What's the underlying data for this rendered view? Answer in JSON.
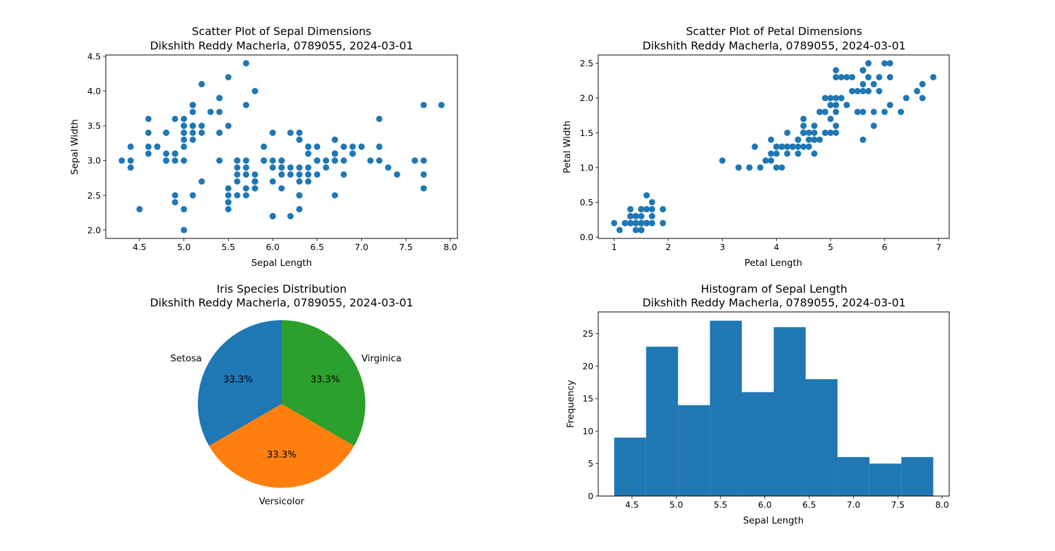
{
  "colors": {
    "series": "#1f77b4",
    "pie": [
      "#1f77b4",
      "#ff7f0e",
      "#2ca02c"
    ],
    "pie_edge": "#ffffff",
    "axes": "#000000"
  },
  "chart_data": [
    {
      "id": "sepal-scatter",
      "type": "scatter",
      "title_lines": [
        "Scatter Plot of Sepal Dimensions",
        "Dikshith Reddy Macherla, 0789055, 2024-03-01"
      ],
      "xlabel": "Sepal Length",
      "ylabel": "Sepal Width",
      "xlim": [
        4.12,
        8.08
      ],
      "ylim": [
        1.88,
        4.52
      ],
      "xticks": [
        4.5,
        5.0,
        5.5,
        6.0,
        6.5,
        7.0,
        7.5,
        8.0
      ],
      "xtick_labels": [
        "4.5",
        "5.0",
        "5.5",
        "6.0",
        "6.5",
        "7.0",
        "7.5",
        "8.0"
      ],
      "yticks": [
        2.0,
        2.5,
        3.0,
        3.5,
        4.0,
        4.5
      ],
      "ytick_labels": [
        "2.0",
        "2.5",
        "3.0",
        "3.5",
        "4.0",
        "4.5"
      ],
      "grid": false,
      "points": [
        [
          5.1,
          3.5
        ],
        [
          4.9,
          3.0
        ],
        [
          4.7,
          3.2
        ],
        [
          4.6,
          3.1
        ],
        [
          5.0,
          3.6
        ],
        [
          5.4,
          3.9
        ],
        [
          4.6,
          3.4
        ],
        [
          5.0,
          3.4
        ],
        [
          4.4,
          2.9
        ],
        [
          4.9,
          3.1
        ],
        [
          5.4,
          3.7
        ],
        [
          4.8,
          3.4
        ],
        [
          4.8,
          3.0
        ],
        [
          4.3,
          3.0
        ],
        [
          5.8,
          4.0
        ],
        [
          5.7,
          4.4
        ],
        [
          5.4,
          3.9
        ],
        [
          5.1,
          3.5
        ],
        [
          5.7,
          3.8
        ],
        [
          5.1,
          3.8
        ],
        [
          5.4,
          3.4
        ],
        [
          5.1,
          3.7
        ],
        [
          4.6,
          3.6
        ],
        [
          5.1,
          3.3
        ],
        [
          4.8,
          3.4
        ],
        [
          5.0,
          3.0
        ],
        [
          5.0,
          3.4
        ],
        [
          5.2,
          3.5
        ],
        [
          5.2,
          3.4
        ],
        [
          4.7,
          3.2
        ],
        [
          4.8,
          3.1
        ],
        [
          5.4,
          3.4
        ],
        [
          5.2,
          4.1
        ],
        [
          5.5,
          4.2
        ],
        [
          4.9,
          3.1
        ],
        [
          5.0,
          3.2
        ],
        [
          5.5,
          3.5
        ],
        [
          4.9,
          3.6
        ],
        [
          4.4,
          3.0
        ],
        [
          5.1,
          3.4
        ],
        [
          5.0,
          3.5
        ],
        [
          4.5,
          2.3
        ],
        [
          4.4,
          3.2
        ],
        [
          5.0,
          3.5
        ],
        [
          5.1,
          3.8
        ],
        [
          4.8,
          3.0
        ],
        [
          5.1,
          3.8
        ],
        [
          4.6,
          3.2
        ],
        [
          5.3,
          3.7
        ],
        [
          5.0,
          3.3
        ],
        [
          7.0,
          3.2
        ],
        [
          6.4,
          3.2
        ],
        [
          6.9,
          3.1
        ],
        [
          5.5,
          2.3
        ],
        [
          6.5,
          2.8
        ],
        [
          5.7,
          2.8
        ],
        [
          6.3,
          3.3
        ],
        [
          4.9,
          2.4
        ],
        [
          6.6,
          2.9
        ],
        [
          5.2,
          2.7
        ],
        [
          5.0,
          2.0
        ],
        [
          5.9,
          3.0
        ],
        [
          6.0,
          2.2
        ],
        [
          6.1,
          2.9
        ],
        [
          5.6,
          2.9
        ],
        [
          6.7,
          3.1
        ],
        [
          5.6,
          3.0
        ],
        [
          5.8,
          2.7
        ],
        [
          6.2,
          2.2
        ],
        [
          5.6,
          2.5
        ],
        [
          5.9,
          3.2
        ],
        [
          6.1,
          2.8
        ],
        [
          6.3,
          2.5
        ],
        [
          6.1,
          2.8
        ],
        [
          6.4,
          2.9
        ],
        [
          6.6,
          3.0
        ],
        [
          6.8,
          2.8
        ],
        [
          6.7,
          3.0
        ],
        [
          6.0,
          2.9
        ],
        [
          5.7,
          2.6
        ],
        [
          5.5,
          2.4
        ],
        [
          5.5,
          2.4
        ],
        [
          5.8,
          2.7
        ],
        [
          6.0,
          2.7
        ],
        [
          5.4,
          3.0
        ],
        [
          6.0,
          3.4
        ],
        [
          6.7,
          3.1
        ],
        [
          6.3,
          2.3
        ],
        [
          5.6,
          3.0
        ],
        [
          5.5,
          2.5
        ],
        [
          5.5,
          2.6
        ],
        [
          6.1,
          3.0
        ],
        [
          5.8,
          2.6
        ],
        [
          5.0,
          2.3
        ],
        [
          5.6,
          2.7
        ],
        [
          5.7,
          3.0
        ],
        [
          5.7,
          2.9
        ],
        [
          6.2,
          2.9
        ],
        [
          5.1,
          2.5
        ],
        [
          5.7,
          2.8
        ],
        [
          6.3,
          3.3
        ],
        [
          5.8,
          2.7
        ],
        [
          7.1,
          3.0
        ],
        [
          6.3,
          2.9
        ],
        [
          6.5,
          3.0
        ],
        [
          7.6,
          3.0
        ],
        [
          4.9,
          2.5
        ],
        [
          7.3,
          2.9
        ],
        [
          6.7,
          2.5
        ],
        [
          7.2,
          3.6
        ],
        [
          6.5,
          3.2
        ],
        [
          6.4,
          2.7
        ],
        [
          6.8,
          3.0
        ],
        [
          5.7,
          2.5
        ],
        [
          5.8,
          2.8
        ],
        [
          6.4,
          3.2
        ],
        [
          6.5,
          3.0
        ],
        [
          7.7,
          3.8
        ],
        [
          7.7,
          2.6
        ],
        [
          6.0,
          2.2
        ],
        [
          6.9,
          3.2
        ],
        [
          5.6,
          2.8
        ],
        [
          7.7,
          2.8
        ],
        [
          6.3,
          2.7
        ],
        [
          6.7,
          3.3
        ],
        [
          7.2,
          3.2
        ],
        [
          6.2,
          2.8
        ],
        [
          6.1,
          3.0
        ],
        [
          6.4,
          2.8
        ],
        [
          7.2,
          3.0
        ],
        [
          7.4,
          2.8
        ],
        [
          7.9,
          3.8
        ],
        [
          6.4,
          2.8
        ],
        [
          6.3,
          2.8
        ],
        [
          6.1,
          2.6
        ],
        [
          7.7,
          3.0
        ],
        [
          6.3,
          3.4
        ],
        [
          6.4,
          3.1
        ],
        [
          6.0,
          3.0
        ],
        [
          6.9,
          3.1
        ],
        [
          6.7,
          3.1
        ],
        [
          6.9,
          3.1
        ],
        [
          5.8,
          2.7
        ],
        [
          6.8,
          3.2
        ],
        [
          6.7,
          3.3
        ],
        [
          6.7,
          3.0
        ],
        [
          6.3,
          2.5
        ],
        [
          6.5,
          3.0
        ],
        [
          6.2,
          3.4
        ],
        [
          5.9,
          3.0
        ]
      ]
    },
    {
      "id": "petal-scatter",
      "type": "scatter",
      "title_lines": [
        "Scatter Plot of Petal Dimensions",
        "Dikshith Reddy Macherla, 0789055, 2024-03-01"
      ],
      "xlabel": "Petal Length",
      "ylabel": "Petal Width",
      "xlim": [
        0.705,
        7.195
      ],
      "ylim": [
        -0.02,
        2.62
      ],
      "xticks": [
        1,
        2,
        3,
        4,
        5,
        6,
        7
      ],
      "xtick_labels": [
        "1",
        "2",
        "3",
        "4",
        "5",
        "6",
        "7"
      ],
      "yticks": [
        0.0,
        0.5,
        1.0,
        1.5,
        2.0,
        2.5
      ],
      "ytick_labels": [
        "0.0",
        "0.5",
        "1.0",
        "1.5",
        "2.0",
        "2.5"
      ],
      "grid": false,
      "points": [
        [
          1.4,
          0.2
        ],
        [
          1.4,
          0.2
        ],
        [
          1.3,
          0.2
        ],
        [
          1.5,
          0.2
        ],
        [
          1.4,
          0.2
        ],
        [
          1.7,
          0.4
        ],
        [
          1.4,
          0.3
        ],
        [
          1.5,
          0.2
        ],
        [
          1.4,
          0.2
        ],
        [
          1.5,
          0.1
        ],
        [
          1.5,
          0.2
        ],
        [
          1.6,
          0.2
        ],
        [
          1.4,
          0.1
        ],
        [
          1.1,
          0.1
        ],
        [
          1.2,
          0.2
        ],
        [
          1.5,
          0.4
        ],
        [
          1.3,
          0.4
        ],
        [
          1.4,
          0.3
        ],
        [
          1.7,
          0.3
        ],
        [
          1.5,
          0.3
        ],
        [
          1.7,
          0.2
        ],
        [
          1.5,
          0.4
        ],
        [
          1.0,
          0.2
        ],
        [
          1.7,
          0.5
        ],
        [
          1.9,
          0.2
        ],
        [
          1.6,
          0.2
        ],
        [
          1.6,
          0.4
        ],
        [
          1.5,
          0.2
        ],
        [
          1.4,
          0.2
        ],
        [
          1.6,
          0.2
        ],
        [
          1.6,
          0.2
        ],
        [
          1.5,
          0.4
        ],
        [
          1.5,
          0.1
        ],
        [
          1.4,
          0.2
        ],
        [
          1.5,
          0.1
        ],
        [
          1.2,
          0.2
        ],
        [
          1.3,
          0.2
        ],
        [
          1.5,
          0.1
        ],
        [
          1.3,
          0.2
        ],
        [
          1.5,
          0.2
        ],
        [
          1.3,
          0.3
        ],
        [
          1.3,
          0.3
        ],
        [
          1.3,
          0.2
        ],
        [
          1.6,
          0.6
        ],
        [
          1.9,
          0.4
        ],
        [
          1.4,
          0.3
        ],
        [
          1.6,
          0.2
        ],
        [
          1.4,
          0.2
        ],
        [
          1.5,
          0.2
        ],
        [
          1.4,
          0.2
        ],
        [
          4.7,
          1.4
        ],
        [
          4.5,
          1.5
        ],
        [
          4.9,
          1.5
        ],
        [
          4.0,
          1.3
        ],
        [
          4.6,
          1.5
        ],
        [
          4.5,
          1.3
        ],
        [
          4.7,
          1.6
        ],
        [
          3.3,
          1.0
        ],
        [
          4.6,
          1.3
        ],
        [
          3.9,
          1.4
        ],
        [
          3.5,
          1.0
        ],
        [
          4.2,
          1.5
        ],
        [
          4.0,
          1.0
        ],
        [
          4.7,
          1.4
        ],
        [
          3.6,
          1.3
        ],
        [
          4.4,
          1.4
        ],
        [
          4.5,
          1.5
        ],
        [
          4.1,
          1.0
        ],
        [
          4.5,
          1.5
        ],
        [
          3.9,
          1.1
        ],
        [
          4.8,
          1.8
        ],
        [
          4.0,
          1.3
        ],
        [
          4.9,
          1.5
        ],
        [
          4.7,
          1.2
        ],
        [
          4.3,
          1.3
        ],
        [
          4.4,
          1.4
        ],
        [
          4.8,
          1.4
        ],
        [
          5.0,
          1.7
        ],
        [
          4.5,
          1.5
        ],
        [
          3.5,
          1.0
        ],
        [
          3.8,
          1.1
        ],
        [
          3.7,
          1.0
        ],
        [
          3.9,
          1.2
        ],
        [
          5.1,
          1.6
        ],
        [
          4.5,
          1.5
        ],
        [
          4.5,
          1.6
        ],
        [
          4.7,
          1.5
        ],
        [
          4.4,
          1.3
        ],
        [
          4.1,
          1.3
        ],
        [
          4.0,
          1.3
        ],
        [
          4.4,
          1.2
        ],
        [
          4.6,
          1.4
        ],
        [
          4.0,
          1.2
        ],
        [
          3.3,
          1.0
        ],
        [
          4.2,
          1.3
        ],
        [
          4.2,
          1.2
        ],
        [
          4.2,
          1.3
        ],
        [
          4.3,
          1.3
        ],
        [
          3.0,
          1.1
        ],
        [
          4.1,
          1.3
        ],
        [
          6.0,
          2.5
        ],
        [
          5.1,
          1.9
        ],
        [
          5.9,
          2.1
        ],
        [
          5.6,
          1.8
        ],
        [
          5.8,
          2.2
        ],
        [
          6.6,
          2.1
        ],
        [
          4.5,
          1.7
        ],
        [
          6.3,
          1.8
        ],
        [
          5.8,
          1.8
        ],
        [
          6.1,
          2.5
        ],
        [
          5.1,
          2.0
        ],
        [
          5.3,
          1.9
        ],
        [
          5.5,
          2.1
        ],
        [
          5.0,
          2.0
        ],
        [
          5.1,
          2.4
        ],
        [
          5.3,
          2.3
        ],
        [
          5.5,
          1.8
        ],
        [
          6.7,
          2.2
        ],
        [
          6.9,
          2.3
        ],
        [
          5.0,
          1.5
        ],
        [
          5.7,
          2.3
        ],
        [
          4.9,
          2.0
        ],
        [
          6.7,
          2.0
        ],
        [
          4.9,
          1.8
        ],
        [
          5.7,
          2.1
        ],
        [
          6.0,
          1.8
        ],
        [
          4.8,
          1.8
        ],
        [
          4.9,
          1.8
        ],
        [
          5.6,
          2.1
        ],
        [
          5.8,
          1.6
        ],
        [
          6.1,
          1.9
        ],
        [
          6.4,
          2.0
        ],
        [
          5.6,
          2.2
        ],
        [
          5.1,
          1.5
        ],
        [
          5.6,
          1.4
        ],
        [
          6.1,
          2.3
        ],
        [
          5.6,
          2.4
        ],
        [
          5.5,
          1.8
        ],
        [
          4.8,
          1.8
        ],
        [
          5.4,
          2.1
        ],
        [
          5.6,
          2.4
        ],
        [
          5.1,
          2.3
        ],
        [
          5.1,
          1.9
        ],
        [
          5.9,
          2.3
        ],
        [
          5.7,
          2.5
        ],
        [
          5.2,
          2.3
        ],
        [
          5.0,
          1.9
        ],
        [
          5.2,
          2.0
        ],
        [
          5.4,
          2.3
        ],
        [
          5.1,
          1.8
        ]
      ]
    },
    {
      "id": "species-pie",
      "type": "pie",
      "title_lines": [
        "Iris Species Distribution",
        "Dikshith Reddy Macherla, 0789055, 2024-03-01"
      ],
      "labels": [
        "Setosa",
        "Versicolor",
        "Virginica"
      ],
      "values": [
        50,
        50,
        50
      ],
      "pct_labels": [
        "33.3%",
        "33.3%",
        "33.3%"
      ],
      "startangle": 90
    },
    {
      "id": "sepal-hist",
      "type": "bar",
      "title_lines": [
        "Histogram of Sepal Length",
        "Dikshith Reddy Macherla, 0789055, 2024-03-01"
      ],
      "xlabel": "Sepal Length",
      "ylabel": "Frequency",
      "bin_edges": [
        4.3,
        4.66,
        5.02,
        5.38,
        5.74,
        6.1,
        6.46,
        6.82,
        7.18,
        7.54,
        7.9
      ],
      "counts": [
        9,
        23,
        14,
        27,
        16,
        26,
        18,
        6,
        5,
        6
      ],
      "xlim": [
        4.12,
        8.08
      ],
      "ylim": [
        0,
        28.35
      ],
      "xticks": [
        4.5,
        5.0,
        5.5,
        6.0,
        6.5,
        7.0,
        7.5,
        8.0
      ],
      "xtick_labels": [
        "4.5",
        "5.0",
        "5.5",
        "6.0",
        "6.5",
        "7.0",
        "7.5",
        "8.0"
      ],
      "yticks": [
        0,
        5,
        10,
        15,
        20,
        25
      ],
      "ytick_labels": [
        "0",
        "5",
        "10",
        "15",
        "20",
        "25"
      ],
      "grid": false
    }
  ]
}
